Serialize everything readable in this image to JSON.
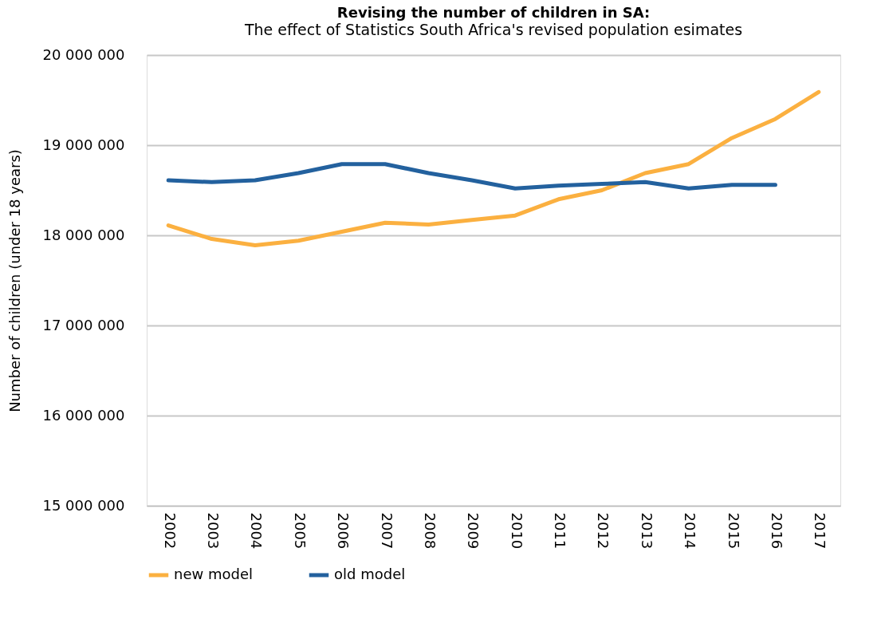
{
  "chart_data": {
    "type": "line",
    "title": "Revising the number of children in SA:",
    "subtitle": "The effect of Statistics South Africa's revised population esimates",
    "ylabel": "Number of children (under 18 years)",
    "categories": [
      "2002",
      "2003",
      "2004",
      "2005",
      "2006",
      "2007",
      "2008",
      "2009",
      "2010",
      "2011",
      "2012",
      "2013",
      "2014",
      "2015",
      "2016",
      "2017"
    ],
    "series": [
      {
        "name": "new model",
        "color": "#fbb040",
        "values": [
          18110000,
          17960000,
          17890000,
          17940000,
          18040000,
          18140000,
          18120000,
          18170000,
          18220000,
          18400000,
          18500000,
          18690000,
          18790000,
          19080000,
          19290000,
          19590000
        ]
      },
      {
        "name": "old model",
        "color": "#23619e",
        "values": [
          18610000,
          18590000,
          18610000,
          18690000,
          18790000,
          18790000,
          18690000,
          18610000,
          18520000,
          18550000,
          18570000,
          18590000,
          18520000,
          18560000,
          18560000,
          null
        ]
      }
    ],
    "ylim": [
      15000000,
      20000000
    ],
    "yticks": [
      {
        "value": 15000000,
        "label": "15 000 000"
      },
      {
        "value": 16000000,
        "label": "16 000 000"
      },
      {
        "value": 17000000,
        "label": "17 000 000"
      },
      {
        "value": 18000000,
        "label": "18 000 000"
      },
      {
        "value": 19000000,
        "label": "19 000 000"
      },
      {
        "value": 20000000,
        "label": "20 000 000"
      }
    ],
    "grid": "y",
    "legend": "bottom",
    "marker": "none",
    "line_style": "solid"
  }
}
